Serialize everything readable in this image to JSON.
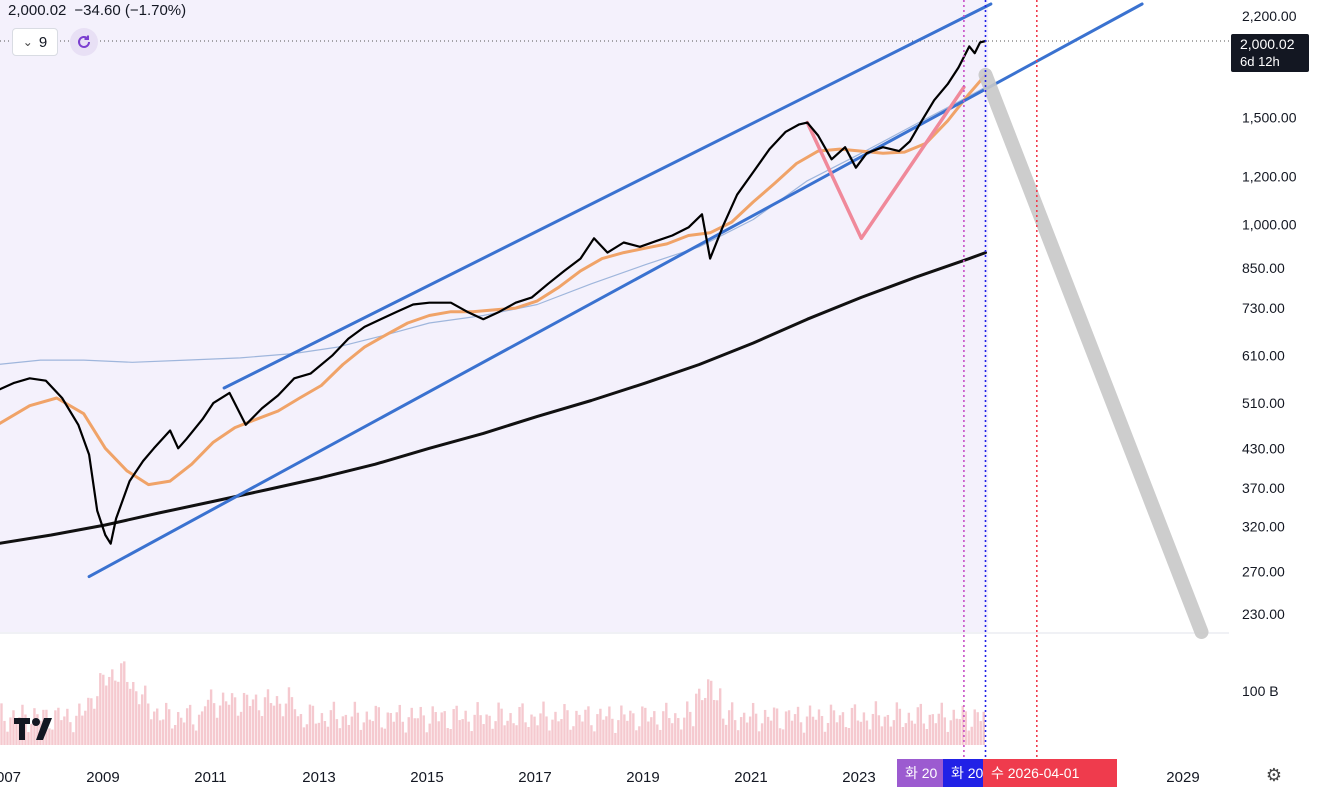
{
  "header": {
    "price": "2,000.02",
    "change": "−34.60 (−1.70%)",
    "interval": "9"
  },
  "price_tag": {
    "value": "2,000.02",
    "countdown": "6d 12h"
  },
  "date_tags": [
    {
      "label": "화 20",
      "color": "#9c5bd0"
    },
    {
      "label": "화 20",
      "color": "#2121e6"
    },
    {
      "label": "수 2026-04-01",
      "color": "#ef3b4d"
    }
  ],
  "icons": [
    "chevron-down-icon",
    "replay-icon",
    "tradingview-logo-icon",
    "gear-icon"
  ],
  "colors": {
    "price": "#000000",
    "channel": "#3a72d0",
    "ema": "#f0a368",
    "sma": "#9fb6dc",
    "long_ma": "#111111",
    "projection": "#c8c8c8",
    "v_pattern": "#f0899a",
    "volume": "#f5c9cf",
    "band_fill": "#f4f1fc"
  },
  "chart_data": {
    "type": "line",
    "x_axis": {
      "labels": [
        "007",
        "2009",
        "2011",
        "2013",
        "2015",
        "2017",
        "2019",
        "2021",
        "2023",
        "2029"
      ]
    },
    "y_axis": {
      "scale": "log",
      "range": [
        215,
        2300
      ],
      "labels": [
        "2,200.00",
        "2,000.02",
        "1,500.00",
        "1,200.00",
        "1,000.00",
        "850.00",
        "730.00",
        "610.00",
        "510.00",
        "430.00",
        "370.00",
        "320.00",
        "270.00",
        "230.00"
      ]
    },
    "volume_axis": {
      "labels": [
        "100 B"
      ]
    },
    "series": [
      {
        "key": "price",
        "points": [
          [
            2007.0,
            535
          ],
          [
            2007.3,
            550
          ],
          [
            2007.6,
            560
          ],
          [
            2007.9,
            555
          ],
          [
            2008.2,
            520
          ],
          [
            2008.5,
            470
          ],
          [
            2008.7,
            420
          ],
          [
            2008.85,
            340
          ],
          [
            2009.0,
            310
          ],
          [
            2009.1,
            300
          ],
          [
            2009.2,
            330
          ],
          [
            2009.45,
            380
          ],
          [
            2009.7,
            410
          ],
          [
            2009.9,
            430
          ],
          [
            2010.2,
            460
          ],
          [
            2010.35,
            430
          ],
          [
            2010.5,
            445
          ],
          [
            2010.8,
            480
          ],
          [
            2011.0,
            510
          ],
          [
            2011.3,
            530
          ],
          [
            2011.6,
            470
          ],
          [
            2011.9,
            500
          ],
          [
            2012.2,
            525
          ],
          [
            2012.5,
            560
          ],
          [
            2012.8,
            570
          ],
          [
            2013.2,
            610
          ],
          [
            2013.5,
            650
          ],
          [
            2013.8,
            680
          ],
          [
            2014.1,
            700
          ],
          [
            2014.4,
            720
          ],
          [
            2014.7,
            740
          ],
          [
            2015.0,
            745
          ],
          [
            2015.4,
            745
          ],
          [
            2015.7,
            720
          ],
          [
            2016.0,
            700
          ],
          [
            2016.3,
            720
          ],
          [
            2016.6,
            745
          ],
          [
            2016.9,
            760
          ],
          [
            2017.2,
            800
          ],
          [
            2017.5,
            840
          ],
          [
            2017.8,
            880
          ],
          [
            2018.05,
            950
          ],
          [
            2018.3,
            900
          ],
          [
            2018.6,
            935
          ],
          [
            2018.9,
            920
          ],
          [
            2019.2,
            940
          ],
          [
            2019.5,
            960
          ],
          [
            2019.8,
            990
          ],
          [
            2020.05,
            1040
          ],
          [
            2020.2,
            880
          ],
          [
            2020.45,
            1000
          ],
          [
            2020.7,
            1120
          ],
          [
            2021.0,
            1220
          ],
          [
            2021.3,
            1330
          ],
          [
            2021.6,
            1420
          ],
          [
            2021.85,
            1460
          ],
          [
            2022.0,
            1470
          ],
          [
            2022.2,
            1400
          ],
          [
            2022.45,
            1280
          ],
          [
            2022.7,
            1340
          ],
          [
            2022.9,
            1240
          ],
          [
            2023.1,
            1310
          ],
          [
            2023.4,
            1340
          ],
          [
            2023.7,
            1320
          ],
          [
            2023.9,
            1370
          ],
          [
            2024.1,
            1470
          ],
          [
            2024.35,
            1600
          ],
          [
            2024.6,
            1700
          ],
          [
            2024.8,
            1810
          ],
          [
            2025.0,
            1960
          ],
          [
            2025.1,
            1910
          ],
          [
            2025.2,
            1990
          ],
          [
            2025.3,
            2000
          ]
        ]
      },
      {
        "key": "ema",
        "points": [
          [
            2007.0,
            470
          ],
          [
            2007.6,
            505
          ],
          [
            2008.1,
            520
          ],
          [
            2008.6,
            490
          ],
          [
            2009.0,
            430
          ],
          [
            2009.4,
            395
          ],
          [
            2009.8,
            375
          ],
          [
            2010.2,
            380
          ],
          [
            2010.6,
            405
          ],
          [
            2011.0,
            440
          ],
          [
            2011.4,
            465
          ],
          [
            2011.8,
            480
          ],
          [
            2012.2,
            495
          ],
          [
            2012.6,
            520
          ],
          [
            2013.0,
            545
          ],
          [
            2013.4,
            590
          ],
          [
            2013.8,
            630
          ],
          [
            2014.2,
            660
          ],
          [
            2014.6,
            690
          ],
          [
            2015.0,
            710
          ],
          [
            2015.4,
            720
          ],
          [
            2015.8,
            720
          ],
          [
            2016.2,
            725
          ],
          [
            2016.6,
            730
          ],
          [
            2017.0,
            750
          ],
          [
            2017.4,
            790
          ],
          [
            2017.8,
            840
          ],
          [
            2018.2,
            880
          ],
          [
            2018.6,
            900
          ],
          [
            2019.0,
            915
          ],
          [
            2019.4,
            930
          ],
          [
            2019.8,
            960
          ],
          [
            2020.2,
            970
          ],
          [
            2020.6,
            1010
          ],
          [
            2021.0,
            1090
          ],
          [
            2021.4,
            1170
          ],
          [
            2021.8,
            1260
          ],
          [
            2022.2,
            1320
          ],
          [
            2022.6,
            1330
          ],
          [
            2023.0,
            1320
          ],
          [
            2023.4,
            1310
          ],
          [
            2023.8,
            1315
          ],
          [
            2024.2,
            1360
          ],
          [
            2024.6,
            1480
          ],
          [
            2025.0,
            1640
          ],
          [
            2025.3,
            1760
          ]
        ]
      },
      {
        "key": "sma",
        "points": [
          [
            2007.0,
            590
          ],
          [
            2007.8,
            600
          ],
          [
            2008.6,
            600
          ],
          [
            2009.5,
            595
          ],
          [
            2010.5,
            600
          ],
          [
            2011.5,
            605
          ],
          [
            2012.5,
            615
          ],
          [
            2013.3,
            630
          ],
          [
            2014.2,
            660
          ],
          [
            2015.0,
            690
          ],
          [
            2016.0,
            710
          ],
          [
            2017.0,
            740
          ],
          [
            2018.0,
            800
          ],
          [
            2019.0,
            860
          ],
          [
            2020.0,
            920
          ],
          [
            2021.0,
            1020
          ],
          [
            2022.0,
            1180
          ],
          [
            2023.0,
            1310
          ],
          [
            2024.0,
            1460
          ],
          [
            2024.8,
            1590
          ],
          [
            2025.3,
            1680
          ]
        ]
      },
      {
        "key": "long_ma",
        "points": [
          [
            2007.0,
            300
          ],
          [
            2008.0,
            310
          ],
          [
            2009.0,
            322
          ],
          [
            2010.0,
            337
          ],
          [
            2011.0,
            352
          ],
          [
            2012.0,
            368
          ],
          [
            2013.0,
            385
          ],
          [
            2014.0,
            405
          ],
          [
            2015.0,
            430
          ],
          [
            2016.0,
            455
          ],
          [
            2017.0,
            485
          ],
          [
            2018.0,
            515
          ],
          [
            2019.0,
            550
          ],
          [
            2020.0,
            590
          ],
          [
            2021.0,
            640
          ],
          [
            2022.0,
            700
          ],
          [
            2023.0,
            760
          ],
          [
            2024.0,
            820
          ],
          [
            2025.0,
            880
          ],
          [
            2025.3,
            900
          ]
        ]
      },
      {
        "key": "channel",
        "points": [
          [
            2011.2,
            540
          ],
          [
            2025.4,
            2300
          ]
        ]
      },
      {
        "key": "channel",
        "points": [
          [
            2008.7,
            265
          ],
          [
            2028.2,
            2300
          ]
        ]
      },
      {
        "key": "v_pattern",
        "points": [
          [
            2022.0,
            1470
          ],
          [
            2023.0,
            950
          ],
          [
            2024.9,
            1680
          ]
        ]
      },
      {
        "key": "projection",
        "points": [
          [
            2025.3,
            1760
          ],
          [
            2029.3,
            215
          ]
        ]
      }
    ],
    "vertical_markers": [
      {
        "x": 2024.9,
        "color": "#c850c8"
      },
      {
        "x": 2025.3,
        "color": "#2121e6"
      },
      {
        "x": 2026.25,
        "color": "#ef3b4d"
      }
    ]
  }
}
